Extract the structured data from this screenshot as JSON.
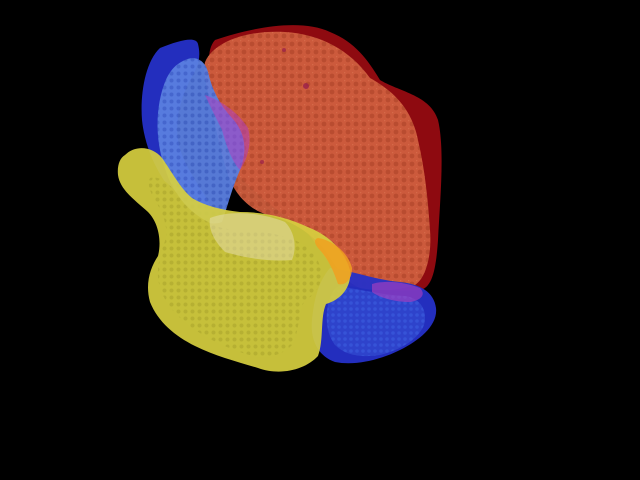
{
  "viewer": {
    "background_color": "#000000"
  },
  "render": {
    "segments": [
      {
        "id": "blue-region",
        "color": "#2f3fd8",
        "texture_color": "#5f86e0",
        "opacity": 0.9
      },
      {
        "id": "red-region",
        "color": "#9a1010",
        "texture_color": "#d0603f",
        "opacity": 0.95
      },
      {
        "id": "yellow-region",
        "color": "#c9c23a",
        "texture_color": "#b8b333",
        "opacity": 0.9
      },
      {
        "id": "orange-overlap",
        "color": "#f0a020",
        "opacity": 0.85
      },
      {
        "id": "purple-overlap",
        "color": "#b040c0",
        "opacity": 0.6
      }
    ]
  }
}
